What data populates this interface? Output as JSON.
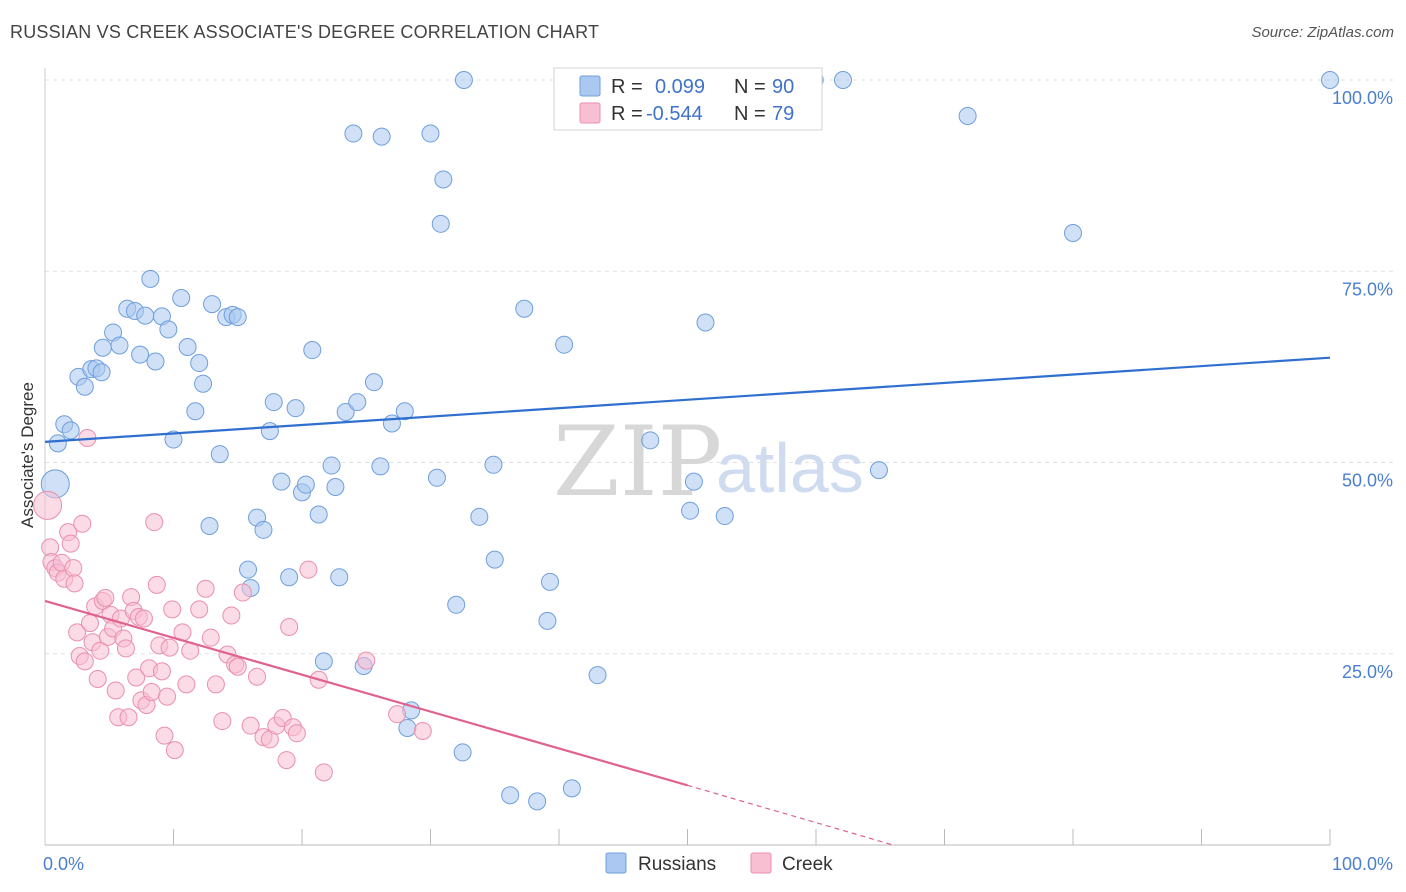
{
  "title": "RUSSIAN VS CREEK ASSOCIATE'S DEGREE CORRELATION CHART",
  "source": "Source: ZipAtlas.com",
  "watermark": {
    "zip": "ZIP",
    "atlas": "atlas"
  },
  "legend": {
    "rows": [
      {
        "r_label": "R =",
        "r_value": "0.099",
        "n_label": "N =",
        "n_value": "90"
      },
      {
        "r_label": "R =",
        "r_value": "-0.544",
        "n_label": "N =",
        "n_value": "79"
      }
    ]
  },
  "bottom_legend": [
    "Russians",
    "Creek"
  ],
  "colors": {
    "russians_fill": "#aac8f0",
    "russians_stroke": "#6f9fdc",
    "russians_line": "#2f6fcf",
    "creek_fill": "#f8bed2",
    "creek_stroke": "#ea8fb0",
    "creek_line": "#e0628f",
    "grid": "#e1e1e1",
    "tick_label": "#4a7fd0"
  },
  "chart_data": {
    "type": "scatter",
    "title": "RUSSIAN VS CREEK ASSOCIATE'S DEGREE CORRELATION CHART",
    "xlabel": "",
    "ylabel": "Associate's Degree",
    "xlim": [
      0,
      100
    ],
    "ylim": [
      0,
      100
    ],
    "x_tick_labels": [
      "0.0%",
      "100.0%"
    ],
    "y_tick_labels": [
      "25.0%",
      "50.0%",
      "75.0%",
      "100.0%"
    ],
    "y_ticks": [
      25,
      50,
      75,
      100
    ],
    "grid": true,
    "legend_position": "top-center",
    "series": [
      {
        "name": "Russians",
        "r": 0.099,
        "n": 90,
        "trend": {
          "x": [
            0,
            100
          ],
          "y": [
            52.7,
            63.7
          ]
        },
        "points": [
          [
            0.8,
            47.2
          ],
          [
            1.0,
            52.5
          ],
          [
            1.5,
            55.0
          ],
          [
            2.0,
            54.2
          ],
          [
            2.6,
            61.2
          ],
          [
            3.1,
            59.9
          ],
          [
            3.6,
            62.2
          ],
          [
            4.0,
            62.3
          ],
          [
            4.4,
            61.8
          ],
          [
            4.5,
            65.0
          ],
          [
            5.3,
            67.0
          ],
          [
            5.8,
            65.3
          ],
          [
            6.4,
            70.1
          ],
          [
            7.0,
            69.8
          ],
          [
            7.4,
            64.1
          ],
          [
            7.8,
            69.2
          ],
          [
            8.2,
            74.0
          ],
          [
            8.6,
            63.2
          ],
          [
            9.1,
            69.1
          ],
          [
            9.6,
            67.4
          ],
          [
            10.0,
            53.0
          ],
          [
            10.6,
            71.5
          ],
          [
            11.1,
            65.1
          ],
          [
            11.7,
            56.7
          ],
          [
            12.0,
            63.0
          ],
          [
            12.3,
            60.3
          ],
          [
            12.8,
            41.7
          ],
          [
            13.0,
            70.7
          ],
          [
            13.6,
            51.1
          ],
          [
            14.1,
            69.0
          ],
          [
            14.6,
            69.3
          ],
          [
            15.0,
            69.0
          ],
          [
            15.8,
            36.0
          ],
          [
            16.0,
            33.6
          ],
          [
            16.5,
            42.8
          ],
          [
            17.0,
            41.2
          ],
          [
            17.5,
            54.1
          ],
          [
            17.8,
            57.9
          ],
          [
            18.4,
            47.5
          ],
          [
            19.0,
            35.0
          ],
          [
            19.5,
            57.1
          ],
          [
            20.0,
            46.1
          ],
          [
            20.3,
            47.1
          ],
          [
            20.8,
            64.7
          ],
          [
            21.3,
            43.2
          ],
          [
            21.7,
            24.0
          ],
          [
            22.3,
            49.6
          ],
          [
            22.6,
            46.8
          ],
          [
            22.9,
            35.0
          ],
          [
            23.4,
            56.6
          ],
          [
            24.0,
            93.0
          ],
          [
            24.3,
            57.9
          ],
          [
            24.8,
            23.4
          ],
          [
            25.6,
            60.5
          ],
          [
            26.1,
            49.5
          ],
          [
            26.2,
            92.6
          ],
          [
            27.0,
            55.1
          ],
          [
            28.0,
            56.7
          ],
          [
            28.2,
            15.3
          ],
          [
            28.5,
            17.6
          ],
          [
            30.0,
            93.0
          ],
          [
            30.5,
            48.0
          ],
          [
            31.0,
            87.0
          ],
          [
            30.8,
            81.2
          ],
          [
            32.0,
            31.4
          ],
          [
            32.5,
            12.1
          ],
          [
            32.6,
            100.0
          ],
          [
            33.8,
            42.9
          ],
          [
            35.0,
            37.3
          ],
          [
            34.9,
            49.7
          ],
          [
            36.2,
            6.5
          ],
          [
            37.3,
            70.1
          ],
          [
            38.3,
            5.7
          ],
          [
            39.1,
            29.3
          ],
          [
            39.3,
            34.4
          ],
          [
            40.4,
            65.4
          ],
          [
            41.0,
            7.4
          ],
          [
            43.0,
            22.2
          ],
          [
            47.1,
            52.9
          ],
          [
            50.2,
            43.7
          ],
          [
            50.5,
            47.5
          ],
          [
            51.4,
            68.3
          ],
          [
            52.9,
            43.0
          ],
          [
            59.8,
            100.0
          ],
          [
            59.9,
            100.0
          ],
          [
            62.1,
            100.0
          ],
          [
            64.9,
            49.0
          ],
          [
            71.8,
            95.3
          ],
          [
            80.0,
            80.0
          ],
          [
            100.0,
            100.0
          ]
        ]
      },
      {
        "name": "Creek",
        "r": -0.544,
        "n": 79,
        "trend": {
          "x": [
            0,
            50
          ],
          "y": [
            31.9,
            7.8
          ]
        },
        "trend_dashed": {
          "x": [
            50,
            66
          ],
          "y": [
            7.8,
            0.0
          ]
        },
        "points": [
          [
            0.2,
            44.4
          ],
          [
            0.4,
            38.9
          ],
          [
            0.5,
            37.0
          ],
          [
            0.8,
            36.2
          ],
          [
            1.0,
            35.6
          ],
          [
            1.3,
            36.9
          ],
          [
            1.5,
            34.8
          ],
          [
            1.8,
            40.9
          ],
          [
            2.0,
            39.4
          ],
          [
            2.2,
            36.2
          ],
          [
            2.3,
            34.2
          ],
          [
            2.5,
            27.8
          ],
          [
            2.7,
            24.7
          ],
          [
            2.9,
            42.0
          ],
          [
            3.1,
            24.0
          ],
          [
            3.3,
            53.2
          ],
          [
            3.5,
            29.0
          ],
          [
            3.7,
            26.5
          ],
          [
            3.9,
            31.2
          ],
          [
            4.1,
            21.7
          ],
          [
            4.3,
            25.4
          ],
          [
            4.5,
            31.9
          ],
          [
            4.7,
            32.3
          ],
          [
            4.9,
            27.2
          ],
          [
            5.1,
            30.1
          ],
          [
            5.3,
            28.3
          ],
          [
            5.5,
            20.2
          ],
          [
            5.7,
            16.7
          ],
          [
            5.9,
            29.6
          ],
          [
            6.1,
            27.0
          ],
          [
            6.3,
            25.7
          ],
          [
            6.5,
            16.7
          ],
          [
            6.7,
            32.4
          ],
          [
            6.9,
            30.6
          ],
          [
            7.1,
            21.9
          ],
          [
            7.3,
            29.8
          ],
          [
            7.5,
            18.9
          ],
          [
            7.7,
            29.6
          ],
          [
            7.9,
            18.3
          ],
          [
            8.1,
            23.1
          ],
          [
            8.3,
            20.0
          ],
          [
            8.5,
            42.2
          ],
          [
            8.7,
            34.0
          ],
          [
            8.9,
            26.1
          ],
          [
            9.1,
            22.7
          ],
          [
            9.3,
            14.3
          ],
          [
            9.5,
            19.4
          ],
          [
            9.7,
            25.8
          ],
          [
            9.9,
            30.8
          ],
          [
            10.1,
            12.4
          ],
          [
            10.7,
            27.8
          ],
          [
            11.0,
            21.0
          ],
          [
            11.3,
            25.4
          ],
          [
            12.0,
            30.8
          ],
          [
            12.5,
            33.5
          ],
          [
            12.9,
            27.1
          ],
          [
            13.3,
            21.0
          ],
          [
            13.8,
            16.2
          ],
          [
            14.2,
            24.9
          ],
          [
            14.5,
            30.0
          ],
          [
            14.8,
            23.6
          ],
          [
            15.0,
            23.3
          ],
          [
            15.4,
            33.0
          ],
          [
            16.0,
            15.6
          ],
          [
            16.5,
            22.0
          ],
          [
            17.0,
            14.1
          ],
          [
            17.5,
            13.8
          ],
          [
            18.0,
            15.6
          ],
          [
            18.5,
            16.6
          ],
          [
            18.8,
            11.1
          ],
          [
            19.0,
            28.5
          ],
          [
            19.3,
            15.4
          ],
          [
            19.6,
            14.6
          ],
          [
            20.5,
            36.0
          ],
          [
            21.3,
            21.6
          ],
          [
            21.7,
            9.5
          ],
          [
            25.0,
            24.1
          ],
          [
            27.4,
            17.1
          ],
          [
            29.4,
            14.9
          ]
        ]
      }
    ]
  }
}
